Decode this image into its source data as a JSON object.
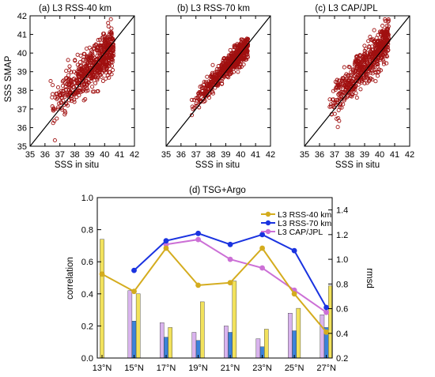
{
  "chart_data": [
    {
      "type": "scatter",
      "title": "(a) L3 RSS-40 km",
      "xlabel": "SSS in situ",
      "ylabel": "SSS SMAP",
      "xlim": [
        35,
        42
      ],
      "ylim": [
        35,
        42
      ],
      "xticks": [
        "35",
        "36",
        "37",
        "38",
        "39",
        "40",
        "41",
        "42"
      ],
      "yticks": [
        "35",
        "36",
        "37",
        "38",
        "39",
        "40",
        "41",
        "42"
      ],
      "reference_line": "1:1",
      "point_color": "#a01010",
      "cloud": {
        "x_range": [
          36.3,
          40.6
        ],
        "slope": 0.8,
        "intercept_at_x38": 38.3,
        "spread": 0.55
      }
    },
    {
      "type": "scatter",
      "title": "(b) L3 RSS-70 km",
      "xlabel": "SSS in situ",
      "ylabel": "",
      "xlim": [
        35,
        42
      ],
      "ylim": [
        35,
        42
      ],
      "xticks": [
        "35",
        "36",
        "37",
        "38",
        "39",
        "40",
        "41",
        "42"
      ],
      "yticks": [
        "35",
        "36",
        "37",
        "38",
        "39",
        "40",
        "41",
        "42"
      ],
      "reference_line": "1:1",
      "point_color": "#a01010",
      "cloud": {
        "x_range": [
          36.6,
          40.5
        ],
        "slope": 0.85,
        "intercept_at_x38": 38.3,
        "spread": 0.3
      }
    },
    {
      "type": "scatter",
      "title": "(c) L3 CAP/JPL",
      "xlabel": "SSS in situ",
      "ylabel": "",
      "xlim": [
        35,
        42
      ],
      "ylim": [
        35,
        42
      ],
      "xticks": [
        "35",
        "36",
        "37",
        "38",
        "39",
        "40",
        "41",
        "42"
      ],
      "yticks": [
        "35",
        "36",
        "37",
        "38",
        "39",
        "40",
        "41",
        "42"
      ],
      "reference_line": "1:1",
      "point_color": "#a01010",
      "cloud": {
        "x_range": [
          36.6,
          40.6
        ],
        "slope": 0.9,
        "intercept_at_x38": 38.4,
        "spread": 0.5
      }
    },
    {
      "type": "bar+line",
      "title": "(d) TSG+Argo",
      "ylabel": "correlation",
      "y2label": "rmsd",
      "ylim": [
        0.0,
        1.0
      ],
      "y2lim": [
        0.2,
        1.5
      ],
      "yticks": [
        "0.0",
        "0.2",
        "0.4",
        "0.6",
        "0.8",
        "1.0"
      ],
      "y2ticks": [
        "0.2",
        "0.4",
        "0.6",
        "0.8",
        "1.0",
        "1.2",
        "1.4"
      ],
      "categories": [
        "13°N",
        "15°N",
        "17°N",
        "19°N",
        "21°N",
        "23°N",
        "25°N",
        "27°N"
      ],
      "series": [
        {
          "name": "L3 RSS-40 km",
          "color": "#d4ac1e",
          "bar_color": "#f2e25c",
          "bars": [
            0.74,
            0.4,
            0.19,
            0.35,
            0.48,
            0.18,
            0.31,
            0.45
          ],
          "line_rmsd": [
            0.88,
            0.74,
            1.09,
            0.79,
            0.81,
            1.09,
            0.72,
            0.41
          ]
        },
        {
          "name": "L3 RSS-70 km",
          "color": "#1a33e0",
          "bar_color": "#3b82d9",
          "bars": [
            null,
            0.23,
            0.13,
            0.11,
            0.16,
            0.07,
            0.17,
            0.19
          ],
          "line_rmsd": [
            null,
            0.91,
            1.15,
            1.21,
            1.12,
            1.2,
            1.07,
            0.61
          ]
        },
        {
          "name": "L3 CAP/JPL",
          "color": "#cc70d6",
          "bar_color": "#d9b3ee",
          "bars": [
            null,
            0.42,
            0.22,
            0.16,
            0.2,
            0.12,
            0.28,
            0.27
          ],
          "line_rmsd": [
            null,
            null,
            1.12,
            1.16,
            1.0,
            0.93,
            0.75,
            0.57
          ]
        }
      ]
    }
  ]
}
